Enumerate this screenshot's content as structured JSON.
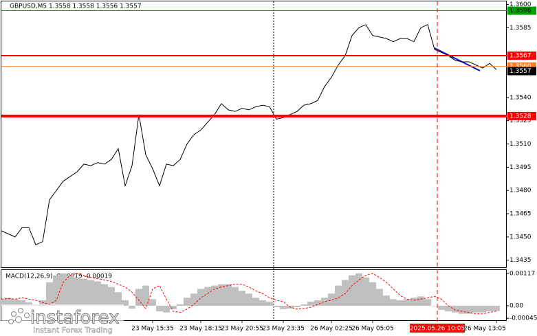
{
  "chart_data": [
    {
      "type": "line",
      "title": "GBPUSD,M5  1.3558 1.3558 1.3556 1.3557",
      "series": [
        {
          "name": "GBPUSD",
          "color": "#000000",
          "values": [
            1.3454,
            1.3452,
            1.345,
            1.3456,
            1.3456,
            1.3445,
            1.3447,
            1.3474,
            1.348,
            1.3486,
            1.3489,
            1.3492,
            1.3497,
            1.3496,
            1.3498,
            1.3497,
            1.35,
            1.3507,
            1.3483,
            1.3496,
            1.3529,
            1.3503,
            1.3494,
            1.3483,
            1.3497,
            1.3496,
            1.35,
            1.351,
            1.3516,
            1.3519,
            1.3524,
            1.3529,
            1.3536,
            1.3532,
            1.3531,
            1.3533,
            1.3532,
            1.3534,
            1.3535,
            1.3534,
            1.3526,
            1.3527,
            1.3529,
            1.3531,
            1.3535,
            1.3536,
            1.3538,
            1.3547,
            1.3553,
            1.3561,
            1.3567,
            1.358,
            1.3585,
            1.3587,
            1.358,
            1.3579,
            1.3578,
            1.3576,
            1.3578,
            1.3578,
            1.3576,
            1.3585,
            1.3587,
            1.3571,
            1.3569,
            1.3567,
            1.3564,
            1.3563,
            1.3563,
            1.3561,
            1.3559,
            1.3562,
            1.3558
          ]
        }
      ],
      "ylim": [
        1.343,
        1.3602
      ],
      "yticks": [
        {
          "value": 1.36,
          "label": "1.3600"
        },
        1.3585,
        {
          "value": 1.354,
          "label": "1.3540"
        },
        1.3525,
        {
          "value": 1.351,
          "label": "1.3510"
        },
        1.3495,
        {
          "value": 1.348,
          "label": "1.3480"
        },
        1.3465,
        {
          "value": 1.345,
          "label": "1.3450"
        },
        1.3435
      ],
      "levels": [
        {
          "value": 1.3596,
          "label": "1.3596",
          "color": "#00a000",
          "text_color": "#000000",
          "width": 1
        },
        {
          "value": 1.3567,
          "label": "1.3567",
          "color": "#ff0000",
          "text_color": "#ffffff",
          "width": 2
        },
        {
          "value": 1.356,
          "label": "1.3560",
          "color": "#ff7f27",
          "text_color": "#ffffff",
          "width": 1
        },
        {
          "value": 1.3557,
          "label": "1.3557",
          "color": "#000000",
          "text_color": "#ffffff",
          "width": 0
        },
        {
          "value": 1.3528,
          "label": "1.3528",
          "color": "#ff0000",
          "text_color": "#ffffff",
          "width": 4
        }
      ],
      "grid": false
    },
    {
      "type": "bar",
      "title": "MACD(12,26,9) -0.00019 -0.00019",
      "categories": [
        null,
        null,
        null,
        null,
        null,
        null,
        null,
        null,
        null,
        null,
        null,
        null,
        null,
        null,
        null,
        null,
        null,
        null,
        null,
        null,
        null,
        null,
        "23 May 15:35",
        null,
        null,
        null,
        null,
        null,
        null,
        "23 May 18:15",
        null,
        null,
        null,
        null,
        null,
        "23 May 20:55",
        null,
        null,
        null,
        null,
        null,
        "23 May 23:35",
        null,
        null,
        null,
        null,
        null,
        null,
        "26 May 02:25",
        null,
        null,
        null,
        null,
        null,
        "26 May 05:05",
        null,
        null,
        null,
        null,
        null,
        null,
        null,
        null,
        null,
        null,
        null,
        null,
        null,
        null,
        null,
        null,
        null,
        "26 May 13:05"
      ],
      "series": [
        {
          "name": "MACD",
          "color": "#c0c0c0",
          "values": [
            0.00024,
            0.00029,
            0.00024,
            0.0002,
            0.00012,
            5e-05,
            0.0002,
            0.00085,
            0.0011,
            0.00117,
            0.0011,
            0.00102,
            0.00098,
            0.00093,
            0.00088,
            0.00078,
            0.00068,
            0.00049,
            0.0002,
            -0.0001,
            0.00061,
            0.00073,
            0.00024,
            -0.0002,
            -0.00024,
            -0.00012,
            5e-05,
            0.00029,
            0.00044,
            0.00061,
            0.00068,
            0.00073,
            0.00078,
            0.00078,
            0.00068,
            0.00054,
            0.00044,
            0.00029,
            0.0002,
            0.00015,
            -5e-05,
            -0.00012,
            -0.0001,
            -5e-05,
            5e-05,
            0.00015,
            0.0002,
            0.00029,
            0.00044,
            0.00073,
            0.00093,
            0.0011,
            0.00117,
            0.00102,
            0.00085,
            0.00061,
            0.00037,
            0.00024,
            0.0002,
            0.00024,
            0.00029,
            0.00034,
            0.00024,
            0,
            -0.00015,
            -0.0002,
            -0.00024,
            -0.00029,
            -0.00029,
            -0.00024,
            -0.00024,
            -0.0002,
            -0.00019
          ]
        },
        {
          "name": "Signal",
          "color": "#ff0000",
          "values": [
            0.00024,
            0.00026,
            0.00024,
            0.00029,
            0.00024,
            0.0002,
            0.00012,
            5e-05,
            0.0002,
            0.00085,
            0.0011,
            0.00117,
            0.0011,
            0.00102,
            0.00098,
            0.00093,
            0.00088,
            0.00078,
            0.00068,
            0.00049,
            0.0002,
            -0.0001,
            0.00061,
            0.00073,
            0.00024,
            -0.0002,
            -0.00024,
            -0.00012,
            5e-05,
            0.00029,
            0.00044,
            0.00061,
            0.00068,
            0.00073,
            0.00078,
            0.00078,
            0.00068,
            0.00054,
            0.00044,
            0.00029,
            0.0002,
            0.00015,
            -5e-05,
            -0.00012,
            -0.0001,
            -5e-05,
            5e-05,
            0.00015,
            0.0002,
            0.00029,
            0.00044,
            0.00073,
            0.00093,
            0.0011,
            0.00117,
            0.00102,
            0.00085,
            0.00061,
            0.00037,
            0.00024,
            0.0002,
            0.00024,
            0.00029,
            0.00034,
            0.00024,
            0,
            -0.00015,
            -0.0002,
            -0.00024,
            -0.00029,
            -0.00029,
            -0.00024,
            -0.00019
          ]
        }
      ],
      "ylim": [
        -0.00052,
        0.00129
      ],
      "yticks": [
        0.00117,
        {
          "value": 0,
          "label": "0.00"
        },
        -0.00045
      ],
      "cursor": {
        "label": "2025.05.26 10:05",
        "color": "#ff0000"
      }
    }
  ],
  "watermark": {
    "brand": "instaforex",
    "tagline": "Instant Forex Trading"
  }
}
